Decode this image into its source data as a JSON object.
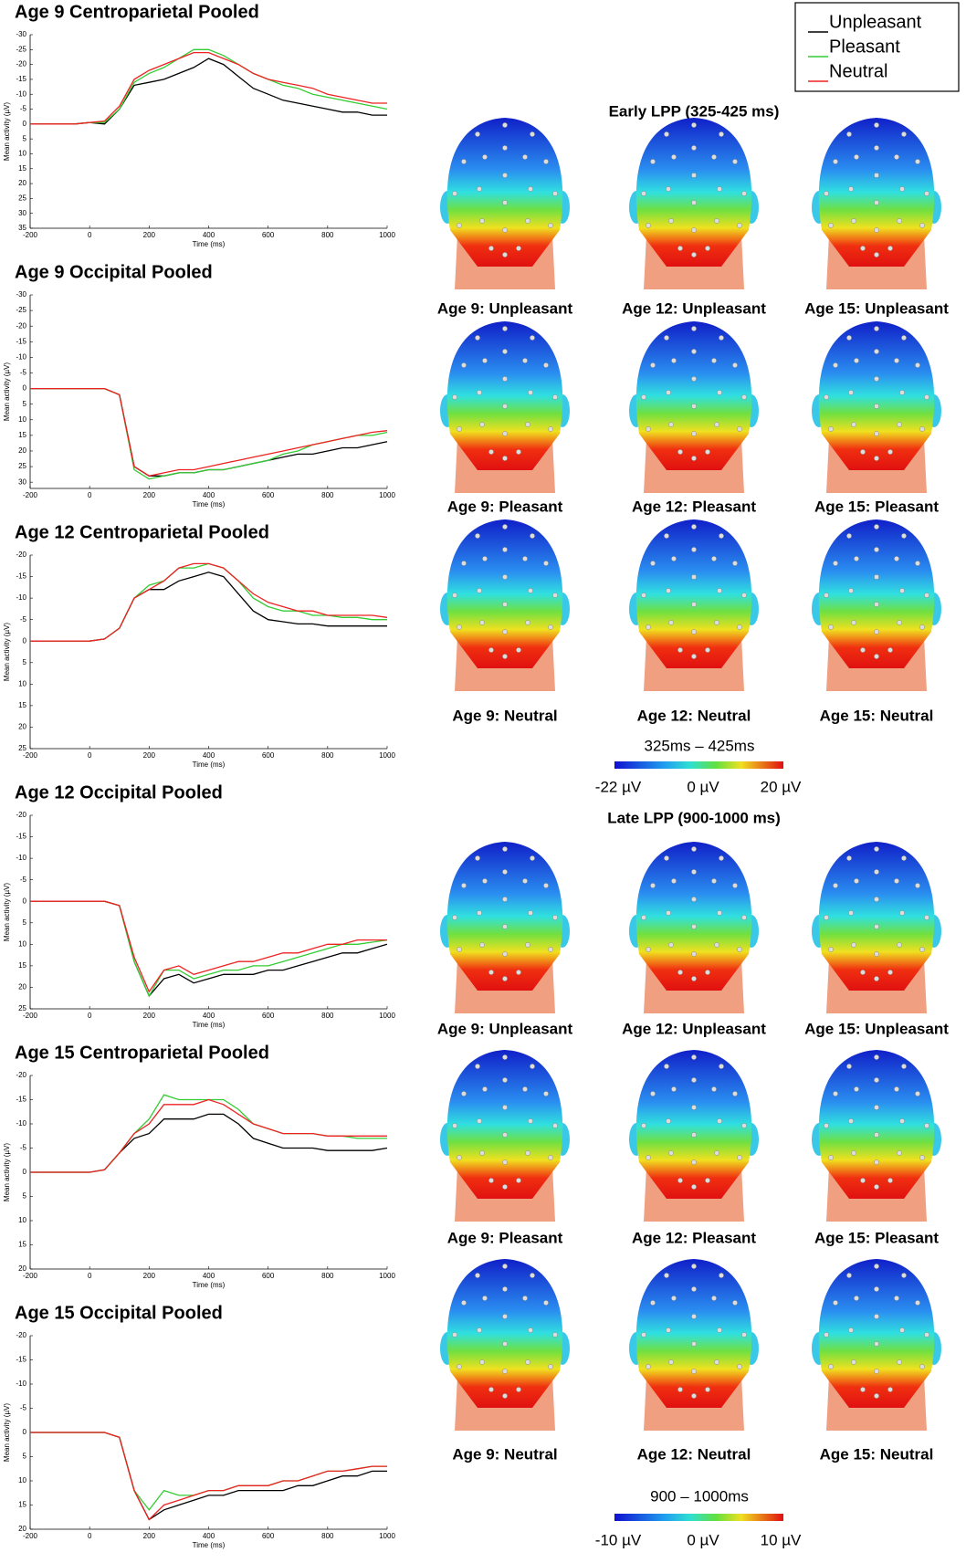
{
  "chart_data": [
    {
      "type": "line",
      "title": "Age 9 Centroparietal Pooled",
      "xlabel": "Time (ms)",
      "ylabel": "Mean activity (µV)",
      "y_inverted": true,
      "x": [
        -200,
        -150,
        -100,
        -50,
        0,
        50,
        100,
        150,
        200,
        250,
        300,
        350,
        400,
        450,
        500,
        550,
        600,
        650,
        700,
        750,
        800,
        850,
        900,
        950,
        1000
      ],
      "xlim": [
        -200,
        1000
      ],
      "xticks": [
        -200,
        0,
        200,
        400,
        600,
        800,
        1000
      ],
      "ylim": [
        -30,
        35
      ],
      "yticks": [
        -30,
        -25,
        -20,
        -15,
        -10,
        -5,
        0,
        5,
        10,
        15,
        20,
        25,
        30,
        35
      ],
      "legend": "top-right",
      "series": [
        {
          "name": "Unpleasant",
          "color": "#000000",
          "values": [
            0,
            0,
            0,
            0,
            -0.5,
            0,
            -5,
            -13,
            -14,
            -15,
            -17,
            -19,
            -22,
            -20,
            -16,
            -12,
            -10,
            -8,
            -7,
            -6,
            -5,
            -4,
            -4,
            -3,
            -3
          ]
        },
        {
          "name": "Pleasant",
          "color": "#33cc33",
          "values": [
            0,
            0,
            0,
            0,
            -0.5,
            -0.5,
            -5,
            -14,
            -17,
            -19,
            -22,
            -25,
            -25,
            -23,
            -20,
            -17,
            -15,
            -13,
            -12,
            -10,
            -9,
            -8,
            -7,
            -6,
            -5
          ]
        },
        {
          "name": "Neutral",
          "color": "#ee2222",
          "values": [
            0,
            0,
            0,
            0,
            -0.5,
            -1,
            -6,
            -15,
            -18,
            -20,
            -22,
            -24,
            -24,
            -22,
            -20,
            -17,
            -15,
            -14,
            -13,
            -12,
            -10,
            -9,
            -8,
            -7,
            -7
          ]
        }
      ]
    },
    {
      "type": "line",
      "title": "Age 9 Occipital Pooled",
      "xlabel": "Time (ms)",
      "ylabel": "Mean activity (µV)",
      "y_inverted": true,
      "x": [
        -200,
        -150,
        -100,
        -50,
        0,
        50,
        100,
        150,
        200,
        250,
        300,
        350,
        400,
        450,
        500,
        550,
        600,
        650,
        700,
        750,
        800,
        850,
        900,
        950,
        1000
      ],
      "xlim": [
        -200,
        1000
      ],
      "xticks": [
        -200,
        0,
        200,
        400,
        600,
        800,
        1000
      ],
      "ylim": [
        -30,
        32
      ],
      "yticks": [
        -30,
        -25,
        -20,
        -15,
        -10,
        -5,
        0,
        5,
        10,
        15,
        20,
        25,
        30
      ],
      "series": [
        {
          "color": "#000000",
          "values": [
            0,
            0,
            0,
            0,
            0,
            0,
            2,
            25,
            28,
            28,
            27,
            27,
            26,
            26,
            25,
            24,
            23,
            22,
            21,
            21,
            20,
            19,
            19,
            18,
            17
          ]
        },
        {
          "color": "#33cc33",
          "values": [
            0,
            0,
            0,
            0,
            0,
            0,
            2,
            26,
            29,
            28,
            27,
            27,
            26,
            26,
            25,
            24,
            23,
            21,
            20,
            18,
            17,
            16,
            15,
            15,
            14
          ]
        },
        {
          "color": "#ee2222",
          "values": [
            0,
            0,
            0,
            0,
            0,
            0,
            2,
            25,
            28,
            27,
            26,
            26,
            25,
            24,
            23,
            22,
            21,
            20,
            19,
            18,
            17,
            16,
            15,
            14,
            13.5
          ]
        }
      ]
    },
    {
      "type": "line",
      "title": "Age 12 Centroparietal Pooled",
      "xlabel": "Time (ms)",
      "ylabel": "Mean activity (µV)",
      "y_inverted": true,
      "x": [
        -200,
        -150,
        -100,
        -50,
        0,
        50,
        100,
        150,
        200,
        250,
        300,
        350,
        400,
        450,
        500,
        550,
        600,
        650,
        700,
        750,
        800,
        850,
        900,
        950,
        1000
      ],
      "xlim": [
        -200,
        1000
      ],
      "xticks": [
        -200,
        0,
        200,
        400,
        600,
        800,
        1000
      ],
      "ylim": [
        -20,
        25
      ],
      "yticks": [
        -20,
        -15,
        -10,
        -5,
        0,
        5,
        10,
        15,
        20,
        25
      ],
      "series": [
        {
          "color": "#000000",
          "values": [
            0,
            0,
            0,
            0,
            0,
            -0.5,
            -3,
            -10,
            -12,
            -12,
            -14,
            -15,
            -16,
            -15,
            -11,
            -7,
            -5,
            -4.5,
            -4,
            -4,
            -3.5,
            -3.5,
            -3.5,
            -3.5,
            -3.5
          ]
        },
        {
          "color": "#33cc33",
          "values": [
            0,
            0,
            0,
            0,
            0,
            -0.5,
            -3,
            -10,
            -13,
            -14,
            -17,
            -17,
            -18,
            -17,
            -14,
            -10,
            -8,
            -7,
            -7,
            -6,
            -6,
            -5.5,
            -5.5,
            -5,
            -5
          ]
        },
        {
          "color": "#ee2222",
          "values": [
            0,
            0,
            0,
            0,
            0,
            -0.5,
            -3,
            -10,
            -12,
            -14,
            -17,
            -18,
            -18,
            -17,
            -14,
            -11,
            -9,
            -8,
            -7,
            -7,
            -6,
            -6,
            -6,
            -6,
            -5.5
          ]
        }
      ]
    },
    {
      "type": "line",
      "title": "Age 12 Occipital Pooled",
      "xlabel": "Time (ms)",
      "ylabel": "Mean activity (µV)",
      "y_inverted": true,
      "x": [
        -200,
        -150,
        -100,
        -50,
        0,
        50,
        100,
        150,
        200,
        250,
        300,
        350,
        400,
        450,
        500,
        550,
        600,
        650,
        700,
        750,
        800,
        850,
        900,
        950,
        1000
      ],
      "xlim": [
        -200,
        1000
      ],
      "xticks": [
        -200,
        0,
        200,
        400,
        600,
        800,
        1000
      ],
      "ylim": [
        -20,
        25
      ],
      "yticks": [
        -20,
        -15,
        -10,
        -5,
        0,
        5,
        10,
        15,
        20,
        25
      ],
      "series": [
        {
          "color": "#000000",
          "values": [
            0,
            0,
            0,
            0,
            0,
            0,
            1,
            14,
            22,
            18,
            17,
            19,
            18,
            17,
            17,
            17,
            16,
            16,
            15,
            14,
            13,
            12,
            12,
            11,
            10
          ]
        },
        {
          "color": "#33cc33",
          "values": [
            0,
            0,
            0,
            0,
            0,
            0,
            1,
            14,
            22,
            16,
            16,
            18,
            17,
            16,
            16,
            15,
            15,
            14,
            13,
            12,
            11,
            10,
            10,
            9.5,
            9
          ]
        },
        {
          "color": "#ee2222",
          "values": [
            0,
            0,
            0,
            0,
            0,
            0,
            1,
            13,
            21,
            16,
            15,
            17,
            16,
            15,
            14,
            14,
            13,
            12,
            12,
            11,
            10,
            10,
            9,
            9,
            9
          ]
        }
      ]
    },
    {
      "type": "line",
      "title": "Age 15 Centroparietal Pooled",
      "xlabel": "Time (ms)",
      "ylabel": "Mean activity (µV)",
      "y_inverted": true,
      "x": [
        -200,
        -150,
        -100,
        -50,
        0,
        50,
        100,
        150,
        200,
        250,
        300,
        350,
        400,
        450,
        500,
        550,
        600,
        650,
        700,
        750,
        800,
        850,
        900,
        950,
        1000
      ],
      "xlim": [
        -200,
        1000
      ],
      "xticks": [
        -200,
        0,
        200,
        400,
        600,
        800,
        1000
      ],
      "ylim": [
        -20,
        20
      ],
      "yticks": [
        -20,
        -15,
        -10,
        -5,
        0,
        5,
        10,
        15,
        20
      ],
      "series": [
        {
          "color": "#000000",
          "values": [
            0,
            0,
            0,
            0,
            0,
            -0.5,
            -4,
            -7,
            -8,
            -11,
            -11,
            -11,
            -12,
            -12,
            -10,
            -7,
            -6,
            -5,
            -5,
            -5,
            -4.5,
            -4.5,
            -4.5,
            -4.5,
            -5
          ]
        },
        {
          "color": "#33cc33",
          "values": [
            0,
            0,
            0,
            0,
            0,
            -0.5,
            -4,
            -8,
            -11,
            -16,
            -15,
            -15,
            -15,
            -15,
            -13,
            -10,
            -9,
            -8,
            -8,
            -8,
            -7.5,
            -7.5,
            -7,
            -7,
            -7
          ]
        },
        {
          "color": "#ee2222",
          "values": [
            0,
            0,
            0,
            0,
            0,
            -0.5,
            -4,
            -8,
            -10,
            -14,
            -14,
            -14,
            -15,
            -14,
            -12,
            -10,
            -9,
            -8,
            -8,
            -8,
            -7.5,
            -7.5,
            -7.5,
            -7.5,
            -7.5
          ]
        }
      ]
    },
    {
      "type": "line",
      "title": "Age 15 Occipital Pooled",
      "xlabel": "Time (ms)",
      "ylabel": "Mean activity (µV)",
      "y_inverted": true,
      "x": [
        -200,
        -150,
        -100,
        -50,
        0,
        50,
        100,
        150,
        200,
        250,
        300,
        350,
        400,
        450,
        500,
        550,
        600,
        650,
        700,
        750,
        800,
        850,
        900,
        950,
        1000
      ],
      "xlim": [
        -200,
        1000
      ],
      "xticks": [
        -200,
        0,
        200,
        400,
        600,
        800,
        1000
      ],
      "ylim": [
        -20,
        20
      ],
      "yticks": [
        -20,
        -15,
        -10,
        -5,
        0,
        5,
        10,
        15,
        20
      ],
      "series": [
        {
          "color": "#000000",
          "values": [
            0,
            0,
            0,
            0,
            0,
            0,
            1,
            12,
            18,
            16,
            15,
            14,
            13,
            13,
            12,
            12,
            12,
            12,
            11,
            11,
            10,
            9,
            9,
            8,
            8
          ]
        },
        {
          "color": "#33cc33",
          "values": [
            0,
            0,
            0,
            0,
            0,
            0,
            1,
            12,
            16,
            12,
            13,
            13,
            12,
            12,
            11,
            11,
            11,
            10,
            10,
            9,
            8,
            8,
            7.5,
            7,
            7
          ]
        },
        {
          "color": "#ee2222",
          "values": [
            0,
            0,
            0,
            0,
            0,
            0,
            1,
            12,
            18,
            15,
            14,
            13,
            12,
            12,
            11,
            11,
            11,
            10,
            10,
            9,
            8,
            8,
            7.5,
            7,
            7
          ]
        }
      ]
    }
  ],
  "topomaps": [
    {
      "title": "Early LPP (325-425 ms)",
      "maps": [
        "Age 9: Unpleasant",
        "Age 12: Unpleasant",
        "Age 15: Unpleasant",
        "Age 9: Pleasant",
        "Age 12: Pleasant",
        "Age 15: Pleasant",
        "Age 9: Neutral",
        "Age 12: Neutral",
        "Age 15: Neutral"
      ],
      "colorbar": {
        "label": "325ms – 425ms",
        "min_label": "-22 µV",
        "zero_label": "0 µV",
        "max_label": "20 µV"
      }
    },
    {
      "title": "Late LPP (900-1000 ms)",
      "maps": [
        "Age 9: Unpleasant",
        "Age 12: Unpleasant",
        "Age 15: Unpleasant",
        "Age 9: Pleasant",
        "Age 12: Pleasant",
        "Age 15: Pleasant",
        "Age 9: Neutral",
        "Age 12: Neutral",
        "Age 15: Neutral"
      ],
      "colorbar": {
        "label": "900 – 1000ms",
        "min_label": "-10 µV",
        "zero_label": "0 µV",
        "max_label": "10 µV"
      }
    }
  ]
}
